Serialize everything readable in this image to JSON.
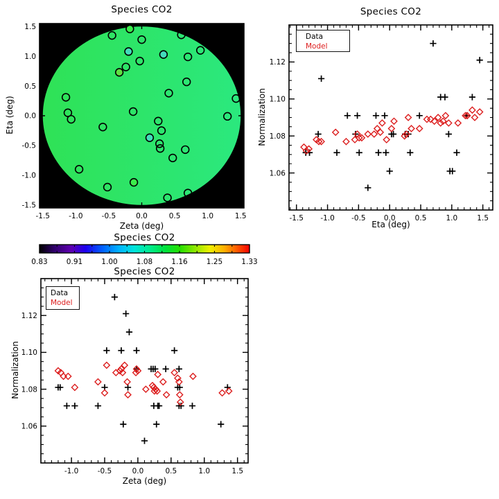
{
  "colors": {
    "data_marker": "#000000",
    "model_marker": "#DC1E1E",
    "map_background": "#000000",
    "frame": "#000000",
    "disk_gradient": [
      "#2FE256",
      "#2BE87E"
    ],
    "point_fills": {
      "cyan": "#43DBBB",
      "lime": "#5FDE41",
      "bright": "#3CEC4B"
    }
  },
  "chart_data": [
    {
      "id": "sky-map",
      "type": "scatter",
      "title": "Species CO2",
      "xlabel": "Zeta (deg)",
      "ylabel": "Eta (deg)",
      "xlim": [
        -1.55,
        1.55
      ],
      "ylim": [
        -1.55,
        1.55
      ],
      "xticks": [
        -1.5,
        -1.0,
        -0.5,
        0.0,
        0.5,
        1.0,
        1.5
      ],
      "xtick_labels": [
        "-1.5",
        "-1.0",
        "-0.5",
        "0.0",
        "0.5",
        "1.0",
        "1.5"
      ],
      "yticks": [
        1.5,
        1.0,
        0.5,
        0.0,
        -0.5,
        -1.0,
        -1.5
      ],
      "ytick_labels": [
        "1.5",
        "1.0",
        "0.5",
        "0.0",
        "-0.5",
        "-1.0",
        "-1.5"
      ],
      "minor_step": 0.1,
      "note": "black field with green model disk, open circles mark sources",
      "points": [
        [
          -0.18,
          1.46,
          "bright"
        ],
        [
          -0.45,
          1.35
        ],
        [
          0.6,
          1.36
        ],
        [
          0.0,
          1.28
        ],
        [
          -0.2,
          1.08,
          "cyan"
        ],
        [
          0.33,
          1.03,
          "cyan"
        ],
        [
          0.89,
          1.1
        ],
        [
          0.7,
          0.99
        ],
        [
          -0.03,
          0.92
        ],
        [
          -0.24,
          0.82
        ],
        [
          -0.34,
          0.73,
          "lime"
        ],
        [
          0.68,
          0.57
        ],
        [
          0.41,
          0.38
        ],
        [
          -1.15,
          0.31
        ],
        [
          1.43,
          0.29
        ],
        [
          -1.12,
          0.05
        ],
        [
          -0.13,
          0.07
        ],
        [
          1.3,
          -0.01
        ],
        [
          -1.07,
          -0.06
        ],
        [
          0.25,
          -0.09
        ],
        [
          -0.59,
          -0.19
        ],
        [
          0.3,
          -0.25
        ],
        [
          0.12,
          -0.37,
          "cyan"
        ],
        [
          0.27,
          -0.47
        ],
        [
          0.28,
          -0.55
        ],
        [
          0.66,
          -0.57
        ],
        [
          0.47,
          -0.71
        ],
        [
          -0.95,
          -0.9
        ],
        [
          -0.12,
          -1.12,
          "bright"
        ],
        [
          -0.52,
          -1.2
        ],
        [
          0.39,
          -1.38
        ],
        [
          0.7,
          -1.3
        ]
      ]
    },
    {
      "id": "normalization-vs-eta",
      "type": "scatter",
      "title": "Species CO2",
      "xlabel": "Eta (deg)",
      "ylabel": "Normalization",
      "xlim": [
        -1.62,
        1.66
      ],
      "ylim": [
        1.04,
        1.14
      ],
      "xticks": [
        -1.5,
        -1.0,
        -0.5,
        0.0,
        0.5,
        1.0,
        1.5
      ],
      "xtick_labels": [
        "-1.5",
        "-1.0",
        "-0.5",
        "0.0",
        "0.5",
        "1.0",
        "1.5"
      ],
      "yticks": [
        1.06,
        1.08,
        1.1,
        1.12
      ],
      "ytick_labels": [
        "1.06",
        "1.08",
        "1.10",
        "1.12"
      ],
      "x_minor_step": 0.1,
      "y_minor_step": 0.005,
      "legend": {
        "position": "top-left",
        "entries": [
          {
            "label": "Data",
            "marker": "plus",
            "color": "#000000"
          },
          {
            "label": "Model",
            "marker": "diamond",
            "color": "#DC1E1E"
          }
        ]
      },
      "series": [
        {
          "name": "Data",
          "marker": "plus",
          "color": "#000000",
          "points": [
            [
              -1.35,
              1.071
            ],
            [
              -1.29,
              1.071
            ],
            [
              -1.15,
              1.081
            ],
            [
              -1.1,
              1.111
            ],
            [
              -0.85,
              1.071
            ],
            [
              -0.68,
              1.091
            ],
            [
              -0.55,
              1.081
            ],
            [
              -0.52,
              1.091
            ],
            [
              -0.49,
              1.071
            ],
            [
              -0.35,
              1.052
            ],
            [
              -0.22,
              1.091
            ],
            [
              -0.18,
              1.071
            ],
            [
              -0.08,
              1.091
            ],
            [
              -0.06,
              1.071
            ],
            [
              0.0,
              1.061
            ],
            [
              0.03,
              1.081
            ],
            [
              0.06,
              1.081
            ],
            [
              0.25,
              1.081
            ],
            [
              0.3,
              1.081
            ],
            [
              0.33,
              1.071
            ],
            [
              0.48,
              1.091
            ],
            [
              0.7,
              1.13
            ],
            [
              0.82,
              1.101
            ],
            [
              0.89,
              1.101
            ],
            [
              0.95,
              1.081
            ],
            [
              0.97,
              1.061
            ],
            [
              1.01,
              1.061
            ],
            [
              1.08,
              1.071
            ],
            [
              1.24,
              1.091
            ],
            [
              1.33,
              1.101
            ],
            [
              1.45,
              1.121
            ]
          ]
        },
        {
          "name": "Model",
          "marker": "diamond",
          "color": "#DC1E1E",
          "points": [
            [
              -1.38,
              1.074
            ],
            [
              -1.34,
              1.072
            ],
            [
              -1.3,
              1.073
            ],
            [
              -1.18,
              1.078
            ],
            [
              -1.14,
              1.077
            ],
            [
              -1.1,
              1.077
            ],
            [
              -0.87,
              1.082
            ],
            [
              -0.7,
              1.077
            ],
            [
              -0.56,
              1.078
            ],
            [
              -0.52,
              1.081
            ],
            [
              -0.49,
              1.079
            ],
            [
              -0.45,
              1.079
            ],
            [
              -0.35,
              1.081
            ],
            [
              -0.25,
              1.081
            ],
            [
              -0.2,
              1.084
            ],
            [
              -0.15,
              1.082
            ],
            [
              -0.12,
              1.087
            ],
            [
              -0.05,
              1.078
            ],
            [
              0.03,
              1.084
            ],
            [
              0.07,
              1.088
            ],
            [
              0.24,
              1.08
            ],
            [
              0.27,
              1.081
            ],
            [
              0.3,
              1.09
            ],
            [
              0.35,
              1.084
            ],
            [
              0.48,
              1.084
            ],
            [
              0.6,
              1.089
            ],
            [
              0.66,
              1.089
            ],
            [
              0.72,
              1.088
            ],
            [
              0.78,
              1.09
            ],
            [
              0.82,
              1.087
            ],
            [
              0.86,
              1.088
            ],
            [
              0.9,
              1.091
            ],
            [
              0.95,
              1.087
            ],
            [
              1.1,
              1.087
            ],
            [
              1.22,
              1.091
            ],
            [
              1.25,
              1.091
            ],
            [
              1.33,
              1.094
            ],
            [
              1.37,
              1.09
            ],
            [
              1.45,
              1.093
            ]
          ]
        }
      ]
    },
    {
      "id": "colorbar",
      "type": "colorbar",
      "title": "Species CO2",
      "tick_values": [
        0.83,
        0.91,
        1.0,
        1.08,
        1.16,
        1.25,
        1.33
      ],
      "tick_labels": [
        "0.83",
        "0.91",
        "1.00",
        "1.08",
        "1.16",
        "1.25",
        "1.33"
      ],
      "gradient_stops": [
        [
          "0.00",
          "#000000"
        ],
        [
          "0.07",
          "#30006A"
        ],
        [
          "0.15",
          "#5E00B0"
        ],
        [
          "0.22",
          "#1D00F0"
        ],
        [
          "0.30",
          "#0061FF"
        ],
        [
          "0.38",
          "#00B4FF"
        ],
        [
          "0.45",
          "#00E4DC"
        ],
        [
          "0.52",
          "#00EC94"
        ],
        [
          "0.60",
          "#00E23C"
        ],
        [
          "0.67",
          "#27DF00"
        ],
        [
          "0.74",
          "#8CE800"
        ],
        [
          "0.81",
          "#EEF000"
        ],
        [
          "0.88",
          "#FFB000"
        ],
        [
          "0.94",
          "#FF5A00"
        ],
        [
          "1.00",
          "#F80000"
        ]
      ]
    },
    {
      "id": "normalization-vs-zeta",
      "type": "scatter",
      "title": "Species CO2",
      "xlabel": "Zeta (deg)",
      "ylabel": "Normalization",
      "xlim": [
        -1.46,
        1.66
      ],
      "ylim": [
        1.04,
        1.14
      ],
      "xticks": [
        -1.0,
        -0.5,
        0.0,
        0.5,
        1.0,
        1.5
      ],
      "xtick_labels": [
        "-1.0",
        "-0.5",
        "0.0",
        "0.5",
        "1.0",
        "1.5"
      ],
      "yticks": [
        1.06,
        1.08,
        1.1,
        1.12
      ],
      "ytick_labels": [
        "1.06",
        "1.08",
        "1.10",
        "1.12"
      ],
      "x_minor_step": 0.1,
      "y_minor_step": 0.005,
      "legend": {
        "position": "top-left",
        "entries": [
          {
            "label": "Data",
            "marker": "plus",
            "color": "#000000"
          },
          {
            "label": "Model",
            "marker": "diamond",
            "color": "#DC1E1E"
          }
        ]
      },
      "series": [
        {
          "name": "Data",
          "marker": "plus",
          "color": "#000000",
          "points": [
            [
              -1.2,
              1.081
            ],
            [
              -1.17,
              1.081
            ],
            [
              -1.07,
              1.071
            ],
            [
              -0.95,
              1.071
            ],
            [
              -0.6,
              1.071
            ],
            [
              -0.5,
              1.081
            ],
            [
              -0.47,
              1.101
            ],
            [
              -0.35,
              1.13
            ],
            [
              -0.25,
              1.101
            ],
            [
              -0.22,
              1.061
            ],
            [
              -0.18,
              1.121
            ],
            [
              -0.15,
              1.081
            ],
            [
              -0.13,
              1.111
            ],
            [
              -0.02,
              1.101
            ],
            [
              -0.02,
              1.091
            ],
            [
              0.1,
              1.052
            ],
            [
              0.2,
              1.091
            ],
            [
              0.23,
              1.091
            ],
            [
              0.26,
              1.091
            ],
            [
              0.24,
              1.071
            ],
            [
              0.28,
              1.061
            ],
            [
              0.3,
              1.071
            ],
            [
              0.32,
              1.071
            ],
            [
              0.42,
              1.091
            ],
            [
              0.55,
              1.101
            ],
            [
              0.6,
              1.081
            ],
            [
              0.63,
              1.081
            ],
            [
              0.62,
              1.091
            ],
            [
              0.62,
              1.071
            ],
            [
              0.65,
              1.071
            ],
            [
              0.82,
              1.071
            ],
            [
              1.25,
              1.061
            ],
            [
              1.35,
              1.081
            ]
          ]
        },
        {
          "name": "Model",
          "marker": "diamond",
          "color": "#DC1E1E",
          "points": [
            [
              -1.2,
              1.09
            ],
            [
              -1.16,
              1.089
            ],
            [
              -1.12,
              1.087
            ],
            [
              -1.05,
              1.087
            ],
            [
              -0.95,
              1.081
            ],
            [
              -0.6,
              1.084
            ],
            [
              -0.5,
              1.078
            ],
            [
              -0.47,
              1.093
            ],
            [
              -0.33,
              1.089
            ],
            [
              -0.27,
              1.09
            ],
            [
              -0.25,
              1.091
            ],
            [
              -0.23,
              1.089
            ],
            [
              -0.2,
              1.093
            ],
            [
              -0.16,
              1.084
            ],
            [
              -0.15,
              1.077
            ],
            [
              -0.03,
              1.089
            ],
            [
              -0.02,
              1.091
            ],
            [
              0.0,
              1.09
            ],
            [
              0.12,
              1.08
            ],
            [
              0.22,
              1.082
            ],
            [
              0.24,
              1.081
            ],
            [
              0.25,
              1.079
            ],
            [
              0.27,
              1.08
            ],
            [
              0.29,
              1.079
            ],
            [
              0.3,
              1.088
            ],
            [
              0.38,
              1.084
            ],
            [
              0.43,
              1.077
            ],
            [
              0.55,
              1.089
            ],
            [
              0.6,
              1.086
            ],
            [
              0.62,
              1.084
            ],
            [
              0.63,
              1.077
            ],
            [
              0.64,
              1.073
            ],
            [
              0.83,
              1.087
            ],
            [
              1.27,
              1.078
            ],
            [
              1.37,
              1.079
            ]
          ]
        }
      ]
    }
  ]
}
